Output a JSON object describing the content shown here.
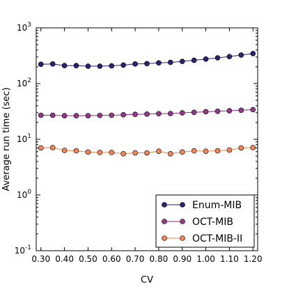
{
  "chart_data": {
    "type": "line",
    "title": "",
    "xlabel": "CV",
    "ylabel": "Average run time (sec)",
    "y_scale": "log",
    "xlim": [
      0.28,
      1.22
    ],
    "ylim": [
      0.1,
      1000
    ],
    "grid": false,
    "legend_position": "bottom-right",
    "x_ticks": [
      "0.30",
      "0.40",
      "0.50",
      "0.60",
      "0.70",
      "0.80",
      "0.90",
      "1.00",
      "1.10",
      "1.20"
    ],
    "y_ticks": [
      {
        "value": 0.1,
        "base": "10",
        "exp": "-1"
      },
      {
        "value": 1,
        "base": "10",
        "exp": "0"
      },
      {
        "value": 10,
        "base": "10",
        "exp": "1"
      },
      {
        "value": 100,
        "base": "10",
        "exp": "2"
      },
      {
        "value": 1000,
        "base": "10",
        "exp": "3"
      }
    ],
    "x": [
      0.3,
      0.35,
      0.4,
      0.45,
      0.5,
      0.55,
      0.6,
      0.65,
      0.7,
      0.75,
      0.8,
      0.85,
      0.9,
      0.95,
      1.0,
      1.05,
      1.1,
      1.15,
      1.2
    ],
    "series": [
      {
        "name": "Enum-MIB",
        "line_color": "#2d1a6f",
        "marker_color": "#2e2072",
        "values": [
          222,
          225,
          210,
          210,
          205,
          205,
          208,
          215,
          225,
          228,
          235,
          240,
          250,
          262,
          275,
          290,
          305,
          325,
          345
        ]
      },
      {
        "name": "OCT-MIB",
        "line_color": "#8b2b7e",
        "marker_color": "#93368c",
        "values": [
          27,
          27,
          26.5,
          26.5,
          26.5,
          26.8,
          27,
          27.5,
          28,
          28.3,
          28.8,
          29,
          29.8,
          30.5,
          31.2,
          31.8,
          32.5,
          33.2,
          34
        ]
      },
      {
        "name": "OCT-MIB-II",
        "line_color": "#e8814f",
        "marker_color": "#f1865a",
        "values": [
          7.0,
          7.1,
          6.3,
          6.2,
          5.9,
          5.8,
          5.8,
          5.5,
          5.7,
          5.7,
          6.1,
          5.5,
          5.9,
          6.2,
          6.1,
          6.2,
          6.4,
          7.0,
          7.1
        ]
      }
    ]
  }
}
